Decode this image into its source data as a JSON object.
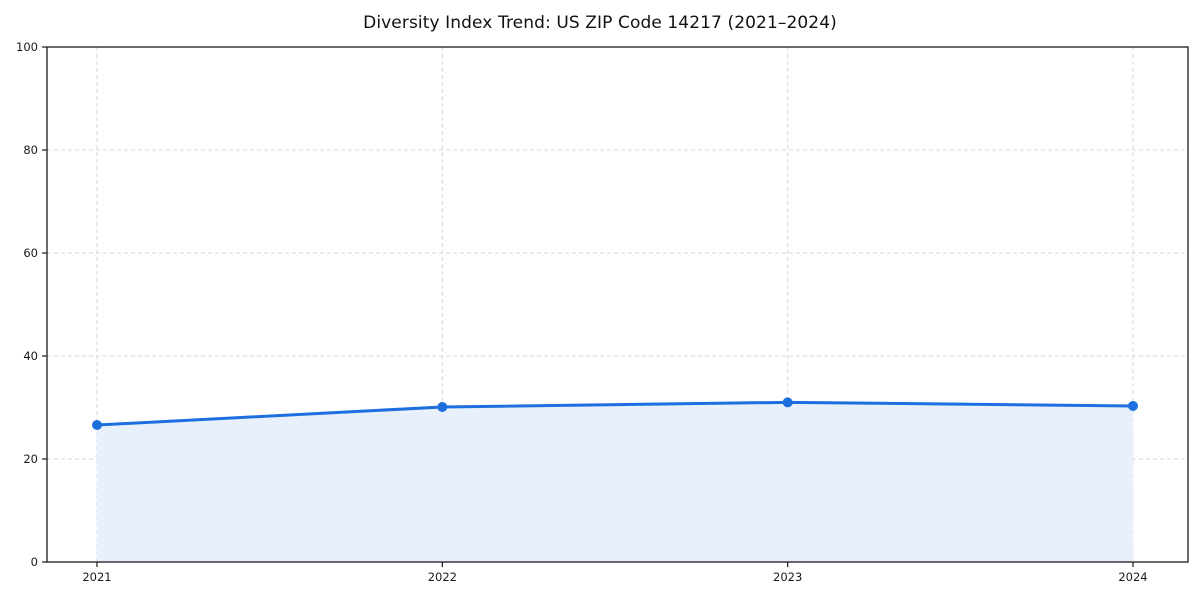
{
  "title": "Diversity Index Trend: US ZIP Code 14217 (2021–2024)",
  "chart_data": {
    "type": "area",
    "title": "Diversity Index Trend: US ZIP Code 14217 (2021–2024)",
    "x": [
      2021,
      2022,
      2023,
      2024
    ],
    "x_tick_labels": [
      "2021",
      "2022",
      "2023",
      "2024"
    ],
    "series": [
      {
        "name": "Diversity Index",
        "values": [
          26.6,
          30.1,
          31.0,
          30.3
        ]
      }
    ],
    "xlabel": "",
    "ylabel": "",
    "ylim": [
      0,
      100
    ],
    "yticks": [
      0,
      20,
      40,
      60,
      80,
      100
    ],
    "grid": true,
    "grid_style": "dashed",
    "legend_position": "none",
    "line_color": "#1d6fe0",
    "marker_color": "#1d6fe0",
    "fill_color": "#e8f0fc",
    "grid_color": "#d8d8d8",
    "spine_color": "#1a1a1a",
    "tick_label_color": "#1a1a1a"
  }
}
